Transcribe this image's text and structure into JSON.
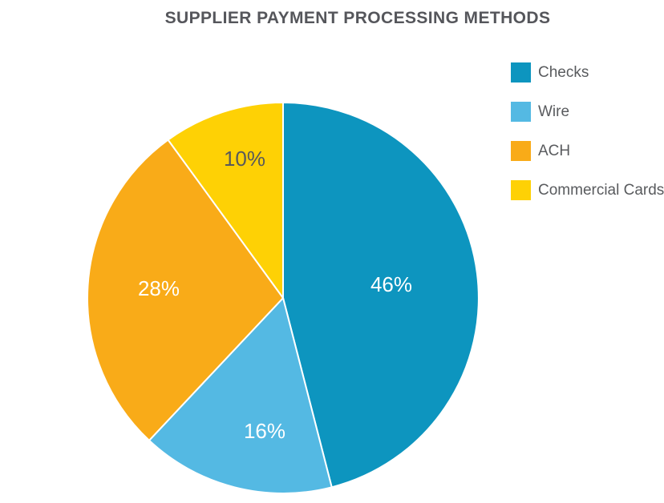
{
  "page": {
    "background": "#ffffff"
  },
  "chart_data": {
    "type": "pie",
    "title": "SUPPLIER PAYMENT PROCESSING METHODS",
    "categories": [
      "Checks",
      "Wire",
      "ACH",
      "Commercial Cards"
    ],
    "values": [
      46,
      16,
      28,
      10
    ],
    "unit": "%",
    "data_labels": [
      "46%",
      "16%",
      "28%",
      "10%"
    ],
    "slice_colors": [
      "#0d95bf",
      "#54b9e3",
      "#f9ab18",
      "#fed105"
    ],
    "label_colors": [
      "#ffffff",
      "#ffffff",
      "#ffffff",
      "#58595b"
    ],
    "start_angle_deg": 0,
    "direction": "clockwise",
    "legend_position": "right",
    "title_color": "#55565b",
    "legend_text_color": "#595b5e",
    "slice_separator_color": "#ffffff"
  }
}
